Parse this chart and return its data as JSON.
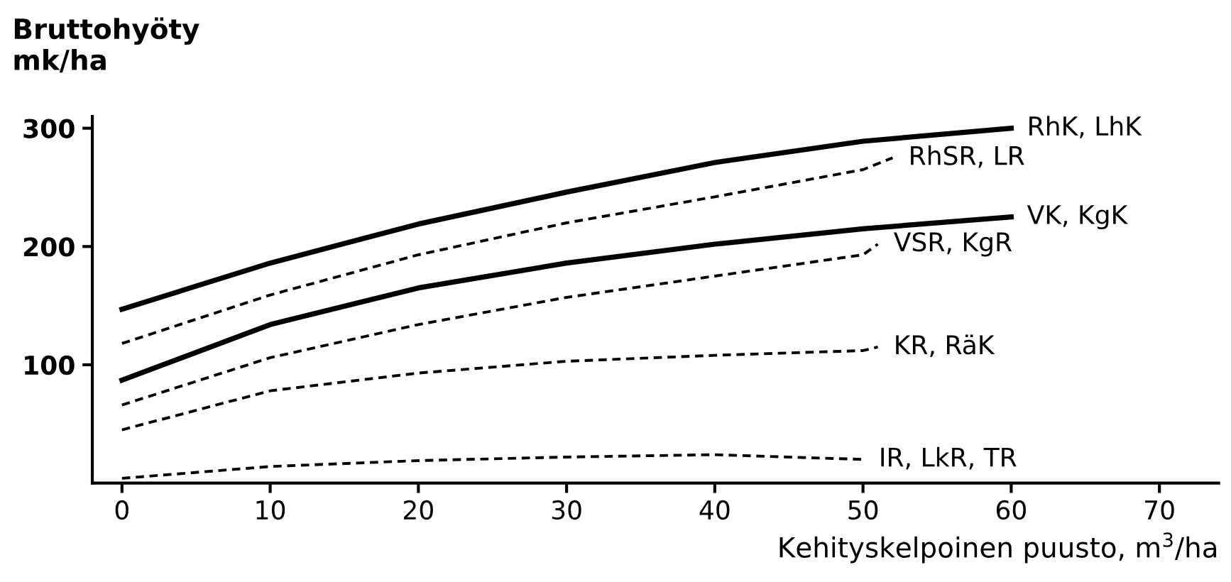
{
  "chart_data": {
    "type": "line",
    "ylabel": "Bruttohyöty\nmk/ha",
    "xlabel": "Kehityskelpoinen puusto, m$^{3}$/ha",
    "xlim": [
      -2,
      74
    ],
    "ylim": [
      0,
      310
    ],
    "xticks": [
      0,
      10,
      20,
      30,
      40,
      50,
      60,
      70
    ],
    "yticks": [
      100,
      200,
      300
    ],
    "grid": false,
    "legend": false,
    "marker": "none",
    "series": [
      {
        "name": "RhK, LhK",
        "color": "#000000",
        "line_style": "solid",
        "x": [
          0,
          10,
          20,
          30,
          40,
          50,
          60
        ],
        "values": [
          147,
          186,
          219,
          246,
          271,
          289,
          300
        ]
      },
      {
        "name": "RhSR, LR",
        "color": "#000000",
        "line_style": "dashed",
        "x": [
          0,
          10,
          20,
          30,
          40,
          50,
          52
        ],
        "values": [
          118,
          159,
          193,
          220,
          242,
          265,
          275
        ]
      },
      {
        "name": "VK, KgK",
        "color": "#000000",
        "line_style": "solid",
        "x": [
          0,
          10,
          20,
          30,
          40,
          50,
          60
        ],
        "values": [
          87,
          134,
          165,
          186,
          202,
          215,
          225
        ]
      },
      {
        "name": "VSR, KgR",
        "color": "#000000",
        "line_style": "dashed",
        "x": [
          0,
          10,
          20,
          30,
          40,
          50,
          51
        ],
        "values": [
          66,
          106,
          134,
          157,
          175,
          193,
          202
        ]
      },
      {
        "name": "KR, RäK",
        "color": "#000000",
        "line_style": "dashed",
        "x": [
          0,
          10,
          20,
          30,
          40,
          50,
          51
        ],
        "values": [
          45,
          78,
          93,
          103,
          108,
          112,
          115
        ]
      },
      {
        "name": "IR, LkR, TR",
        "color": "#000000",
        "line_style": "dashed",
        "x": [
          0,
          10,
          20,
          30,
          40,
          50
        ],
        "values": [
          4,
          14,
          19,
          22,
          24,
          20
        ]
      }
    ]
  }
}
